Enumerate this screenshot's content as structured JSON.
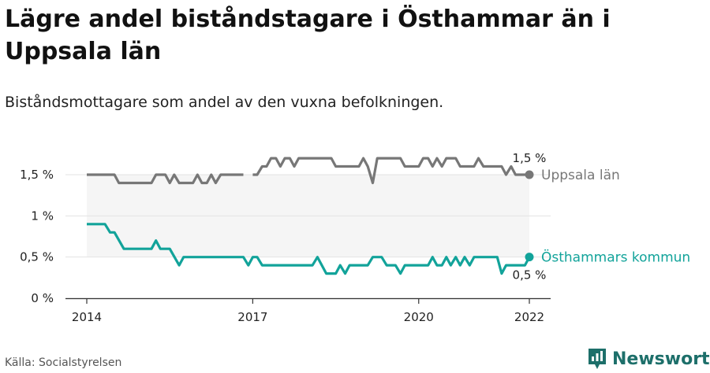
{
  "title": "Lägre andel biståndstagare i Östhammar än i Uppsala län",
  "subtitle": "Biståndsmottagare som andel av den vuxna befolkningen.",
  "source": "Källa: Socialstyrelsen",
  "brand": {
    "name": "Newsworthy",
    "icon": "newsworthy-logo-icon",
    "color": "#1d6f6a"
  },
  "colors": {
    "uppsala": "#777777",
    "osthammar": "#12a39a",
    "band": "#f5f5f5",
    "grid": "#e3e3e3"
  },
  "chart_data": {
    "type": "line",
    "title": "Lägre andel biståndstagare i Östhammar än i Uppsala län",
    "subtitle": "Biståndsmottagare som andel av den vuxna befolkningen.",
    "xlabel": "",
    "ylabel": "",
    "xlim": [
      2014,
      2022.2
    ],
    "ylim": [
      0,
      1.8
    ],
    "x_ticks": [
      2014,
      2017,
      2020,
      2022
    ],
    "x_tick_labels": [
      "2014",
      "2017",
      "2020",
      "2022"
    ],
    "y_ticks": [
      0,
      0.5,
      1,
      1.5
    ],
    "y_tick_labels": [
      "0 %",
      "0,5 %",
      "1 %",
      "1,5 %"
    ],
    "grid": true,
    "legend": "direct labels at line ends",
    "series": [
      {
        "name": "Uppsala län",
        "end_label": "1,5 %",
        "segments": [
          [
            [
              2014.0,
              1.5
            ],
            [
              2014.5,
              1.5
            ],
            [
              2014.58,
              1.4
            ],
            [
              2015.17,
              1.4
            ],
            [
              2015.25,
              1.5
            ],
            [
              2015.42,
              1.5
            ],
            [
              2015.5,
              1.4
            ],
            [
              2015.58,
              1.5
            ],
            [
              2015.67,
              1.4
            ],
            [
              2015.92,
              1.4
            ],
            [
              2016.0,
              1.5
            ],
            [
              2016.08,
              1.4
            ],
            [
              2016.17,
              1.4
            ],
            [
              2016.25,
              1.5
            ],
            [
              2016.33,
              1.4
            ],
            [
              2016.42,
              1.5
            ],
            [
              2016.83,
              1.5
            ]
          ],
          [
            [
              2017.0,
              1.5
            ],
            [
              2017.08,
              1.5
            ],
            [
              2017.17,
              1.6
            ],
            [
              2017.25,
              1.6
            ],
            [
              2017.33,
              1.7
            ],
            [
              2017.42,
              1.7
            ],
            [
              2017.5,
              1.6
            ],
            [
              2017.58,
              1.7
            ],
            [
              2017.67,
              1.7
            ],
            [
              2017.75,
              1.6
            ],
            [
              2017.83,
              1.7
            ],
            [
              2018.42,
              1.7
            ],
            [
              2018.5,
              1.6
            ],
            [
              2018.92,
              1.6
            ],
            [
              2019.0,
              1.7
            ],
            [
              2019.08,
              1.6
            ],
            [
              2019.17,
              1.4
            ],
            [
              2019.25,
              1.7
            ],
            [
              2019.67,
              1.7
            ],
            [
              2019.75,
              1.6
            ],
            [
              2020.0,
              1.6
            ],
            [
              2020.08,
              1.7
            ],
            [
              2020.17,
              1.7
            ],
            [
              2020.25,
              1.6
            ],
            [
              2020.33,
              1.7
            ],
            [
              2020.42,
              1.6
            ],
            [
              2020.5,
              1.7
            ],
            [
              2020.67,
              1.7
            ],
            [
              2020.75,
              1.6
            ],
            [
              2021.0,
              1.6
            ],
            [
              2021.08,
              1.7
            ],
            [
              2021.17,
              1.6
            ],
            [
              2021.5,
              1.6
            ],
            [
              2021.58,
              1.5
            ],
            [
              2021.67,
              1.6
            ],
            [
              2021.75,
              1.5
            ],
            [
              2022.0,
              1.5
            ]
          ]
        ]
      },
      {
        "name": "Östhammars kommun",
        "end_label": "0,5 %",
        "segments": [
          [
            [
              2014.0,
              0.9
            ],
            [
              2014.33,
              0.9
            ],
            [
              2014.42,
              0.8
            ],
            [
              2014.5,
              0.8
            ],
            [
              2014.67,
              0.6
            ],
            [
              2015.17,
              0.6
            ],
            [
              2015.25,
              0.7
            ],
            [
              2015.33,
              0.6
            ],
            [
              2015.5,
              0.6
            ],
            [
              2015.67,
              0.4
            ],
            [
              2015.75,
              0.5
            ],
            [
              2016.83,
              0.5
            ],
            [
              2016.92,
              0.4
            ],
            [
              2017.0,
              0.5
            ],
            [
              2017.08,
              0.5
            ],
            [
              2017.17,
              0.4
            ],
            [
              2018.08,
              0.4
            ],
            [
              2018.17,
              0.5
            ],
            [
              2018.33,
              0.3
            ],
            [
              2018.5,
              0.3
            ],
            [
              2018.58,
              0.4
            ],
            [
              2018.67,
              0.3
            ],
            [
              2018.75,
              0.4
            ],
            [
              2019.08,
              0.4
            ],
            [
              2019.17,
              0.5
            ],
            [
              2019.33,
              0.5
            ],
            [
              2019.42,
              0.4
            ],
            [
              2019.58,
              0.4
            ],
            [
              2019.67,
              0.3
            ],
            [
              2019.75,
              0.4
            ],
            [
              2020.17,
              0.4
            ],
            [
              2020.25,
              0.5
            ],
            [
              2020.33,
              0.4
            ],
            [
              2020.42,
              0.4
            ],
            [
              2020.5,
              0.5
            ],
            [
              2020.58,
              0.4
            ],
            [
              2020.67,
              0.5
            ],
            [
              2020.75,
              0.4
            ],
            [
              2020.83,
              0.5
            ],
            [
              2020.92,
              0.4
            ],
            [
              2021.0,
              0.5
            ],
            [
              2021.42,
              0.5
            ],
            [
              2021.5,
              0.3
            ],
            [
              2021.58,
              0.4
            ],
            [
              2021.92,
              0.4
            ],
            [
              2022.0,
              0.5
            ]
          ]
        ]
      }
    ]
  }
}
